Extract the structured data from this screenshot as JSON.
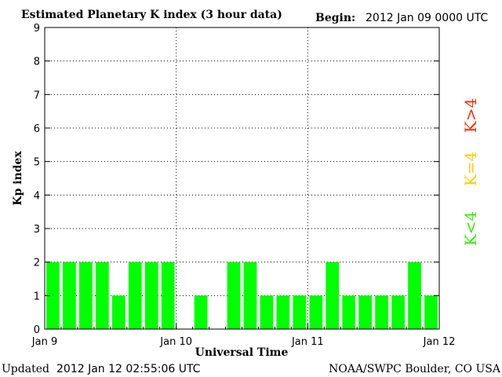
{
  "header": {
    "title": "Estimated Planetary K index (3 hour data)",
    "begin_label": "Begin:",
    "begin_value": "2012 Jan 09 0000 UTC"
  },
  "footer": {
    "updated_label": "Updated",
    "updated_value": "2012 Jan 12 02:55:06 UTC",
    "source": "NOAA/SWPC Boulder, CO USA"
  },
  "legend": {
    "items": [
      {
        "label": "K>4",
        "color": "#ff2a00"
      },
      {
        "label": "K=4",
        "color": "#ffcc00"
      },
      {
        "label": "K<4",
        "color": "#33ee00"
      }
    ]
  },
  "chart_data": {
    "type": "bar",
    "xlabel": "Universal Time",
    "ylabel": "Kp index",
    "ylim": [
      0,
      9
    ],
    "yticks": [
      0,
      1,
      2,
      3,
      4,
      5,
      6,
      7,
      8,
      9
    ],
    "xticks": [
      "Jan 9",
      "Jan 10",
      "Jan 11",
      "Jan 12"
    ],
    "grid": true,
    "bar_color": "#00ff00",
    "bar_interval_hours": 3,
    "values": [
      2,
      2,
      2,
      2,
      1,
      2,
      2,
      2,
      null,
      1,
      null,
      2,
      2,
      1,
      1,
      1,
      1,
      2,
      1,
      1,
      1,
      1,
      2,
      1
    ]
  }
}
